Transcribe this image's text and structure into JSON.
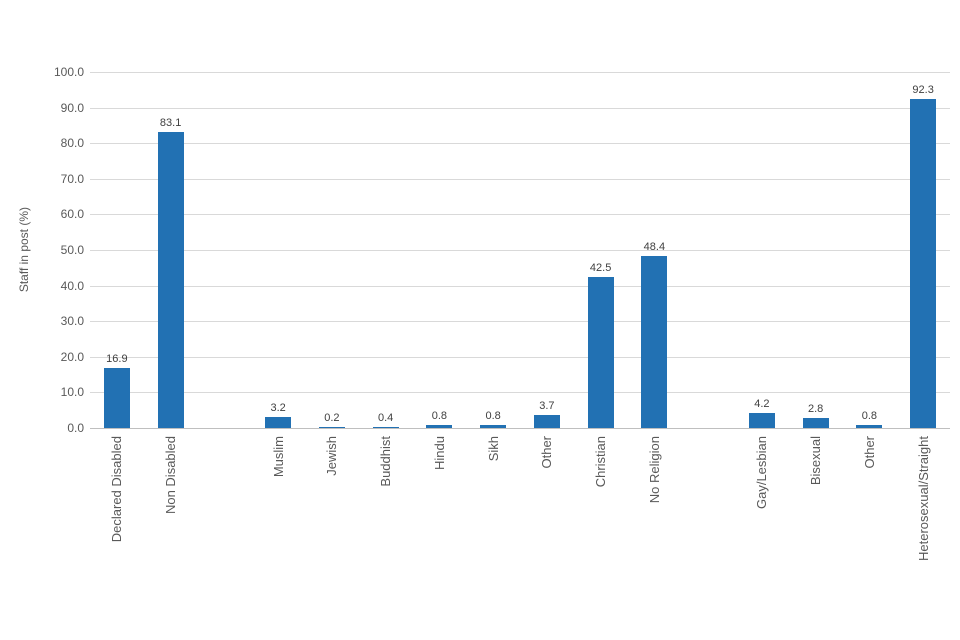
{
  "chart_data": {
    "type": "bar",
    "title": "",
    "xlabel": "",
    "ylabel": "Staff in post (%)",
    "ylim": [
      0,
      100
    ],
    "ytick_step": 10,
    "yticks": [
      "100.0",
      "90.0",
      "80.0",
      "70.0",
      "60.0",
      "50.0",
      "40.0",
      "30.0",
      "20.0",
      "10.0",
      "0.0"
    ],
    "grid": true,
    "legend": false,
    "colors": {
      "bar": "#2271b3",
      "gridline": "#d9d9d9",
      "axis_line": "#bfbfbf",
      "text": "#595959"
    },
    "slots": [
      {
        "label": "Declared Disabled",
        "value": 16.9,
        "value_label": "16.9"
      },
      {
        "label": "Non Disabled",
        "value": 83.1,
        "value_label": "83.1"
      },
      null,
      {
        "label": "Muslim",
        "value": 3.2,
        "value_label": "3.2"
      },
      {
        "label": "Jewish",
        "value": 0.2,
        "value_label": "0.2"
      },
      {
        "label": "Buddhist",
        "value": 0.4,
        "value_label": "0.4"
      },
      {
        "label": "Hindu",
        "value": 0.8,
        "value_label": "0.8"
      },
      {
        "label": "Sikh",
        "value": 0.8,
        "value_label": "0.8"
      },
      {
        "label": "Other",
        "value": 3.7,
        "value_label": "3.7"
      },
      {
        "label": "Christian",
        "value": 42.5,
        "value_label": "42.5"
      },
      {
        "label": "No Religion",
        "value": 48.4,
        "value_label": "48.4"
      },
      null,
      {
        "label": "Gay/Lesbian",
        "value": 4.2,
        "value_label": "4.2"
      },
      {
        "label": "Bisexual",
        "value": 2.8,
        "value_label": "2.8"
      },
      {
        "label": "Other",
        "value": 0.8,
        "value_label": "0.8"
      },
      {
        "label": "Heterosexual/Straight",
        "value": 92.3,
        "value_label": "92.3"
      }
    ]
  }
}
